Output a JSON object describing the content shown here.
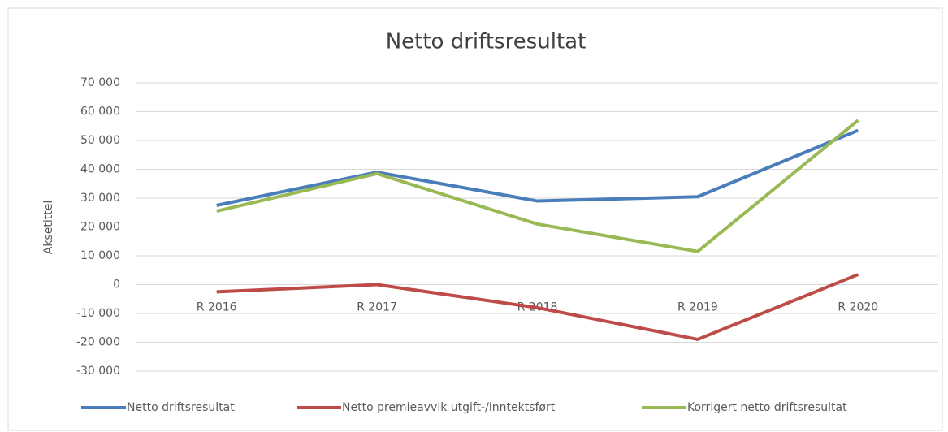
{
  "chart_data": {
    "type": "line",
    "title": "Netto driftsresultat",
    "y_label": "Aksetittel",
    "categories": [
      "R 2016",
      "R 2017",
      "R 2018",
      "R 2019",
      "R 2020"
    ],
    "series": [
      {
        "name": "Netto driftsresultat",
        "color": "#4a7ebb",
        "values": [
          27500,
          39000,
          29000,
          30500,
          53500
        ]
      },
      {
        "name": "Netto premieavvik utgift-/inntektsført",
        "color": "#be4b48",
        "values": [
          -2500,
          0,
          -8000,
          -19000,
          3500
        ]
      },
      {
        "name": "Korrigert netto driftsresultat",
        "color": "#98b954",
        "values": [
          25500,
          38500,
          21000,
          11500,
          57000
        ]
      }
    ],
    "ylim": [
      -30000,
      70000
    ],
    "yticks": [
      {
        "value": -30000,
        "label": "-30 000"
      },
      {
        "value": -20000,
        "label": "-20 000"
      },
      {
        "value": -10000,
        "label": "-10 000"
      },
      0,
      {
        "value": 10000,
        "label": "10 000"
      },
      {
        "value": 20000,
        "label": "20 000"
      },
      {
        "value": 30000,
        "label": "30 000"
      },
      {
        "value": 40000,
        "label": "40 000"
      },
      {
        "value": 50000,
        "label": "50 000"
      },
      {
        "value": 60000,
        "label": "60 000"
      },
      {
        "value": 70000,
        "label": "70 000"
      }
    ],
    "grid": true,
    "legend": "bottom"
  }
}
